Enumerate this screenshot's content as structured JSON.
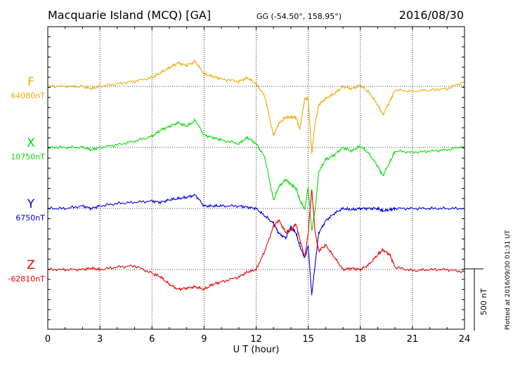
{
  "header": {
    "station": "Macquarie Island (MCQ)  [GA]",
    "coords": "GG (-54.50°, 158.95°)",
    "date": "2016/08/30"
  },
  "footer": {
    "plotted": "Plotted at 2016/09/30 01:31 UT"
  },
  "chart_data": {
    "type": "line",
    "xlabel": "U T (hour)",
    "xlim": [
      0,
      24
    ],
    "xticks": [
      0,
      3,
      6,
      9,
      12,
      15,
      18,
      21,
      24
    ],
    "scale_bar": {
      "value": 500,
      "label": "500 nT"
    },
    "grid": true,
    "series": [
      {
        "name": "F",
        "baseline_label": "64080nT",
        "color": "#f0a800",
        "x": [
          0,
          1,
          2,
          2.5,
          3,
          4,
          5,
          6,
          6.5,
          7,
          7.5,
          8,
          8.5,
          9,
          9.5,
          10,
          11,
          11.5,
          12,
          12.5,
          13,
          13.3,
          13.7,
          14,
          14.3,
          14.5,
          14.8,
          15,
          15.2,
          15.4,
          15.6,
          16,
          16.5,
          17,
          17.5,
          18,
          18.5,
          19,
          19.3,
          19.7,
          20,
          21,
          22,
          23,
          24
        ],
        "y": [
          0,
          0,
          0,
          -20,
          0,
          20,
          40,
          70,
          110,
          150,
          190,
          170,
          200,
          100,
          80,
          60,
          40,
          70,
          20,
          -80,
          -400,
          -300,
          -250,
          -250,
          -250,
          -350,
          -100,
          -100,
          -550,
          -300,
          -150,
          -100,
          -60,
          0,
          -20,
          10,
          -50,
          -150,
          -230,
          -120,
          -30,
          -40,
          -30,
          -20,
          40
        ]
      },
      {
        "name": "X",
        "baseline_label": "10750nT",
        "color": "#00dd00",
        "x": [
          0,
          1,
          2,
          2.5,
          3,
          4,
          5,
          6,
          6.5,
          7,
          7.5,
          8,
          8.5,
          9,
          9.5,
          10,
          11,
          11.5,
          12,
          12.5,
          13,
          13.3,
          13.7,
          14,
          14.3,
          14.5,
          14.8,
          15,
          15.2,
          15.4,
          15.6,
          16,
          16.5,
          17,
          17.5,
          18,
          18.5,
          19,
          19.3,
          19.7,
          20,
          21,
          22,
          23,
          24
        ],
        "y": [
          0,
          0,
          0,
          -20,
          0,
          20,
          50,
          90,
          140,
          170,
          200,
          170,
          220,
          100,
          80,
          60,
          30,
          80,
          30,
          -80,
          -430,
          -320,
          -260,
          -300,
          -330,
          -420,
          -500,
          -320,
          -680,
          -500,
          -200,
          -100,
          -60,
          0,
          -30,
          10,
          -50,
          -150,
          -230,
          -120,
          -30,
          -40,
          -30,
          -20,
          10
        ]
      },
      {
        "name": "Y",
        "baseline_label": "6750nT",
        "color": "#0000e0",
        "x": [
          0,
          1,
          2,
          2.5,
          3,
          4,
          5,
          6,
          6.5,
          7,
          7.5,
          8,
          8.5,
          9,
          9.5,
          10,
          11,
          11.5,
          12,
          12.5,
          13,
          13.3,
          13.7,
          14,
          14.3,
          14.5,
          14.8,
          15,
          15.2,
          15.4,
          15.6,
          16,
          16.5,
          17,
          17.5,
          18,
          18.5,
          19,
          19.3,
          19.7,
          20,
          21,
          22,
          23,
          24
        ],
        "y": [
          0,
          0,
          20,
          0,
          20,
          40,
          50,
          60,
          50,
          70,
          80,
          90,
          110,
          20,
          20,
          20,
          20,
          10,
          0,
          -60,
          -120,
          -200,
          -240,
          -150,
          -200,
          -300,
          -400,
          -300,
          -700,
          -450,
          -200,
          -100,
          -40,
          0,
          -10,
          0,
          0,
          0,
          -20,
          -10,
          0,
          0,
          0,
          0,
          0
        ]
      },
      {
        "name": "Z",
        "baseline_label": "-62810nT",
        "color": "#ee0000",
        "x": [
          0,
          1,
          2,
          2.5,
          3,
          4,
          5,
          6,
          6.5,
          7,
          7.5,
          8,
          8.5,
          9,
          9.5,
          10,
          11,
          11.5,
          12,
          12.5,
          13,
          13.3,
          13.7,
          14,
          14.3,
          14.5,
          14.8,
          15,
          15.2,
          15.4,
          15.6,
          16,
          16.5,
          17,
          17.5,
          18,
          18.5,
          19,
          19.3,
          19.7,
          20,
          21,
          22,
          23,
          24
        ],
        "y": [
          0,
          0,
          0,
          10,
          0,
          20,
          30,
          -30,
          -60,
          -120,
          -160,
          -150,
          -140,
          -160,
          -120,
          -100,
          -60,
          -20,
          0,
          150,
          350,
          400,
          300,
          320,
          370,
          250,
          100,
          300,
          650,
          300,
          150,
          200,
          100,
          0,
          10,
          0,
          40,
          120,
          160,
          120,
          20,
          -10,
          0,
          0,
          -20
        ]
      }
    ]
  }
}
